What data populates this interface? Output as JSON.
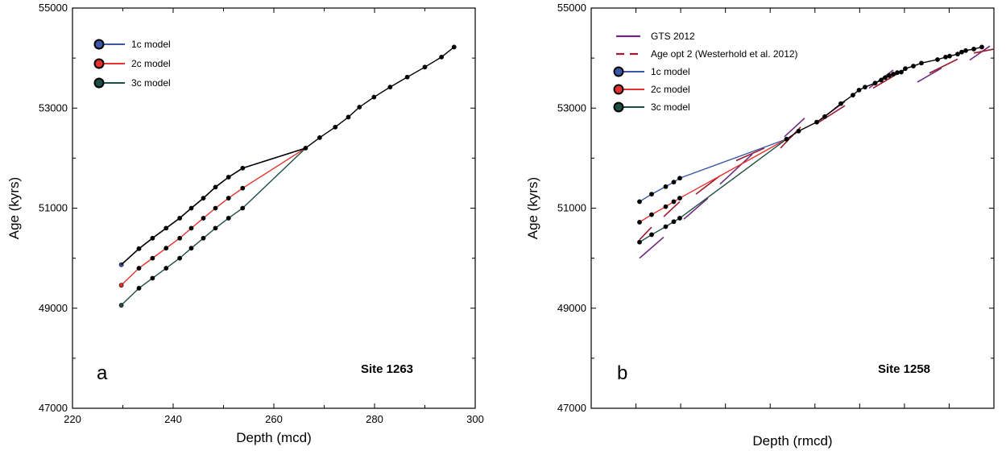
{
  "chart_data": [
    {
      "type": "line",
      "panel_label": "a",
      "site_label": "Site 1263",
      "xlabel": "Depth (mcd)",
      "ylabel": "Age (kyrs)",
      "xlim": [
        220,
        300
      ],
      "ylim": [
        47000,
        55000
      ],
      "x_ticks": [
        "220",
        "240",
        "260",
        "280",
        "300"
      ],
      "y_ticks": [
        "47000",
        "49000",
        "51000",
        "53000",
        "55000"
      ],
      "grid": false,
      "legend_position": "top-left",
      "colors": {
        "1c model": "#3a57a7",
        "2c model": "#e5302e",
        "3c model": "#1d4e46",
        "shared": "#000000"
      },
      "series": [
        {
          "name": "1c model",
          "x": [
            229.7,
            233.2,
            235.9,
            238.6,
            241.3,
            243.6,
            246.0,
            248.4,
            251.0,
            253.8,
            266.3
          ],
          "y": [
            49870,
            50190,
            50400,
            50600,
            50800,
            51000,
            51200,
            51420,
            51620,
            51800,
            52200
          ]
        },
        {
          "name": "2c model",
          "x": [
            229.7,
            233.2,
            235.9,
            238.6,
            241.3,
            243.6,
            246.0,
            248.4,
            251.0,
            253.8,
            266.3
          ],
          "y": [
            49460,
            49800,
            50000,
            50200,
            50400,
            50600,
            50800,
            51000,
            51200,
            51400,
            52200
          ]
        },
        {
          "name": "3c model",
          "x": [
            229.7,
            233.2,
            235.9,
            238.6,
            241.3,
            243.6,
            246.0,
            248.4,
            251.0,
            253.8,
            266.3
          ],
          "y": [
            49060,
            49400,
            49600,
            49800,
            50000,
            50200,
            50400,
            50600,
            50800,
            51000,
            52200
          ]
        },
        {
          "x": [
            266.3,
            269.1,
            272.2,
            274.8,
            277.0,
            279.9,
            283.1,
            286.5,
            290.0,
            293.3,
            295.8
          ],
          "y": [
            52200,
            52410,
            52620,
            52820,
            53020,
            53220,
            53420,
            53620,
            53820,
            54020,
            54220
          ]
        }
      ]
    },
    {
      "type": "line",
      "panel_label": "b",
      "site_label": "Site 1258",
      "xlabel": "Depth (rmcd)",
      "ylabel": "Age (kyrs)",
      "xlim": [
        0,
        100
      ],
      "ylim": [
        47000,
        55000
      ],
      "x_ticks": [],
      "y_ticks": [
        "47000",
        "49000",
        "51000",
        "53000",
        "55000"
      ],
      "grid": false,
      "legend_position": "top-left",
      "colors": {
        "GTS 2012": "#6b2c7e",
        "Age opt 2 (Westerhold et al. 2012)": "#9b1b2f",
        "1c model": "#3a57a7",
        "2c model": "#e5302e",
        "3c model": "#1d4e46",
        "shared": "#000000"
      },
      "series": [
        {
          "name": "GTS 2012",
          "segments": [
            [
              [
                12,
                50000
              ],
              [
                18,
                50420
              ]
            ],
            [
              [
                23,
                50780
              ],
              [
                29,
                51200
              ]
            ],
            [
              [
                32,
                51480
              ],
              [
                40,
                52080
              ]
            ],
            [
              [
                48,
                52430
              ],
              [
                53,
                52800
              ]
            ],
            [
              [
                57,
                52780
              ],
              [
                63,
                53130
              ]
            ],
            [
              [
                69,
                53400
              ],
              [
                75,
                53760
              ]
            ],
            [
              [
                81,
                53520
              ],
              [
                87,
                53800
              ]
            ],
            [
              [
                94,
                53960
              ],
              [
                99,
                54240
              ]
            ]
          ]
        },
        {
          "name": "Age opt 2 (Westerhold et al. 2012)",
          "segments": [
            [
              [
                12,
                50370
              ],
              [
                15,
                50620
              ]
            ],
            [
              [
                18,
                50830
              ],
              [
                22,
                51130
              ]
            ],
            [
              [
                26,
                51280
              ],
              [
                32,
                51650
              ]
            ],
            [
              [
                36,
                51950
              ],
              [
                43,
                52200
              ]
            ],
            [
              [
                47,
                52200
              ],
              [
                52,
                52620
              ]
            ],
            [
              [
                56,
                52690
              ],
              [
                63,
                53050
              ]
            ],
            [
              [
                70,
                53400
              ],
              [
                78,
                53780
              ]
            ],
            [
              [
                84,
                53700
              ],
              [
                91,
                53980
              ]
            ],
            [
              [
                95,
                54100
              ],
              [
                100,
                54180
              ]
            ]
          ]
        },
        {
          "name": "1c model",
          "x": [
            12.0,
            15.0,
            18.5,
            20.5,
            22.0,
            48.5
          ],
          "y": [
            51130,
            51280,
            51430,
            51520,
            51600,
            52380
          ]
        },
        {
          "name": "2c model",
          "x": [
            12.0,
            15.0,
            18.5,
            20.5,
            22.0,
            48.5
          ],
          "y": [
            50720,
            50870,
            51030,
            51130,
            51200,
            52380
          ]
        },
        {
          "name": "3c model",
          "x": [
            12.0,
            15.0,
            18.5,
            20.5,
            22.0,
            48.5
          ],
          "y": [
            50320,
            50470,
            50630,
            50730,
            50800,
            52380
          ]
        },
        {
          "x": [
            48.5,
            51.5,
            56.0,
            58.0,
            62.0,
            65.0,
            66.5,
            68.0,
            70.5,
            72.0,
            73.0,
            74.0,
            75.0,
            76.0,
            77.0,
            78.0,
            80.0,
            82.0,
            86.0,
            88.0,
            89.0,
            91.0,
            92.0,
            93.0,
            95.0,
            97.0
          ],
          "y": [
            52380,
            52540,
            52720,
            52830,
            53090,
            53260,
            53360,
            53420,
            53500,
            53560,
            53610,
            53650,
            53680,
            53710,
            53720,
            53790,
            53840,
            53900,
            53970,
            54020,
            54040,
            54080,
            54120,
            54150,
            54180,
            54220
          ]
        }
      ]
    }
  ]
}
